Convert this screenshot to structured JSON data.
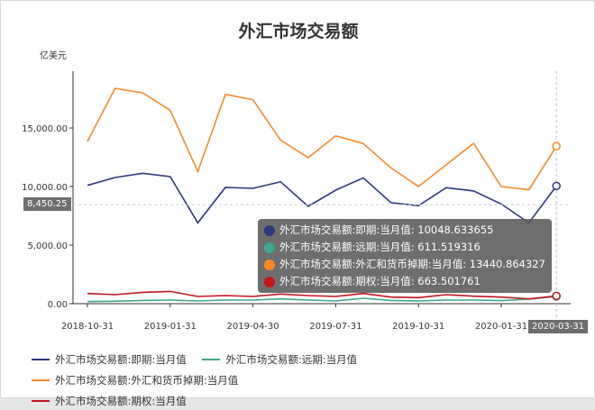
{
  "chart_data": {
    "type": "line",
    "title": "外汇市场交易额",
    "ylabel": "亿美元",
    "ylim": [
      0,
      20000
    ],
    "yticks": [
      "0.00",
      "5,000.00",
      "10,000.00",
      "15,000.00"
    ],
    "ytick_values": [
      0,
      5000,
      10000,
      15000
    ],
    "xtick_labels": [
      "2018-10-31",
      "2019-01-31",
      "2019-04-30",
      "2019-07-31",
      "2019-10-31",
      "2020-01-31"
    ],
    "x": [
      "2018-10-31",
      "2018-11-30",
      "2018-12-31",
      "2019-01-31",
      "2019-02-28",
      "2019-03-31",
      "2019-04-30",
      "2019-05-31",
      "2019-06-30",
      "2019-07-31",
      "2019-08-31",
      "2019-09-30",
      "2019-10-31",
      "2019-11-30",
      "2019-12-31",
      "2020-01-31",
      "2020-02-29",
      "2020-03-31"
    ],
    "grid": false,
    "legend_placement": "bottom",
    "series": [
      {
        "name": "外汇市场交易额:即期:当月值",
        "color": "#2b3a7a",
        "values": [
          10100,
          10770,
          11130,
          10850,
          6900,
          9920,
          9850,
          10410,
          8310,
          9690,
          10740,
          8620,
          8360,
          9900,
          9620,
          8510,
          6900,
          10048.633655
        ]
      },
      {
        "name": "外汇市场交易额:远期:当月值",
        "color": "#3fa58e",
        "values": [
          180,
          205,
          280,
          310,
          230,
          310,
          310,
          410,
          310,
          230,
          460,
          280,
          230,
          310,
          310,
          260,
          385,
          611.519316
        ]
      },
      {
        "name": "外汇市场交易额:外汇和货币掉期:当月值",
        "color": "#f5892a",
        "values": [
          13850,
          18380,
          18000,
          16510,
          11280,
          17870,
          17410,
          13970,
          12460,
          14330,
          13670,
          11590,
          10000,
          11850,
          13690,
          10000,
          9720,
          13440.864327
        ]
      },
      {
        "name": "外汇市场交易额:期权:当月值",
        "color": "#c0161b",
        "values": [
          870,
          770,
          970,
          1050,
          615,
          690,
          615,
          820,
          690,
          615,
          870,
          565,
          515,
          770,
          640,
          565,
          410,
          663.501761
        ]
      }
    ],
    "axis_pointer": {
      "y_label": "8,450.25",
      "y_value": 8450.25,
      "x_label": "2020-03-31"
    },
    "tooltip": {
      "rows": [
        {
          "text": "外汇市场交易额:即期:当月值: 10048.633655",
          "color": "#2b3a7a"
        },
        {
          "text": "外汇市场交易额:远期:当月值: 611.519316",
          "color": "#3fa58e"
        },
        {
          "text": "外汇市场交易额:外汇和货币掉期:当月值: 13440.864327",
          "color": "#f5892a"
        },
        {
          "text": "外汇市场交易额:期权:当月值: 663.501761",
          "color": "#c0161b"
        }
      ]
    }
  }
}
